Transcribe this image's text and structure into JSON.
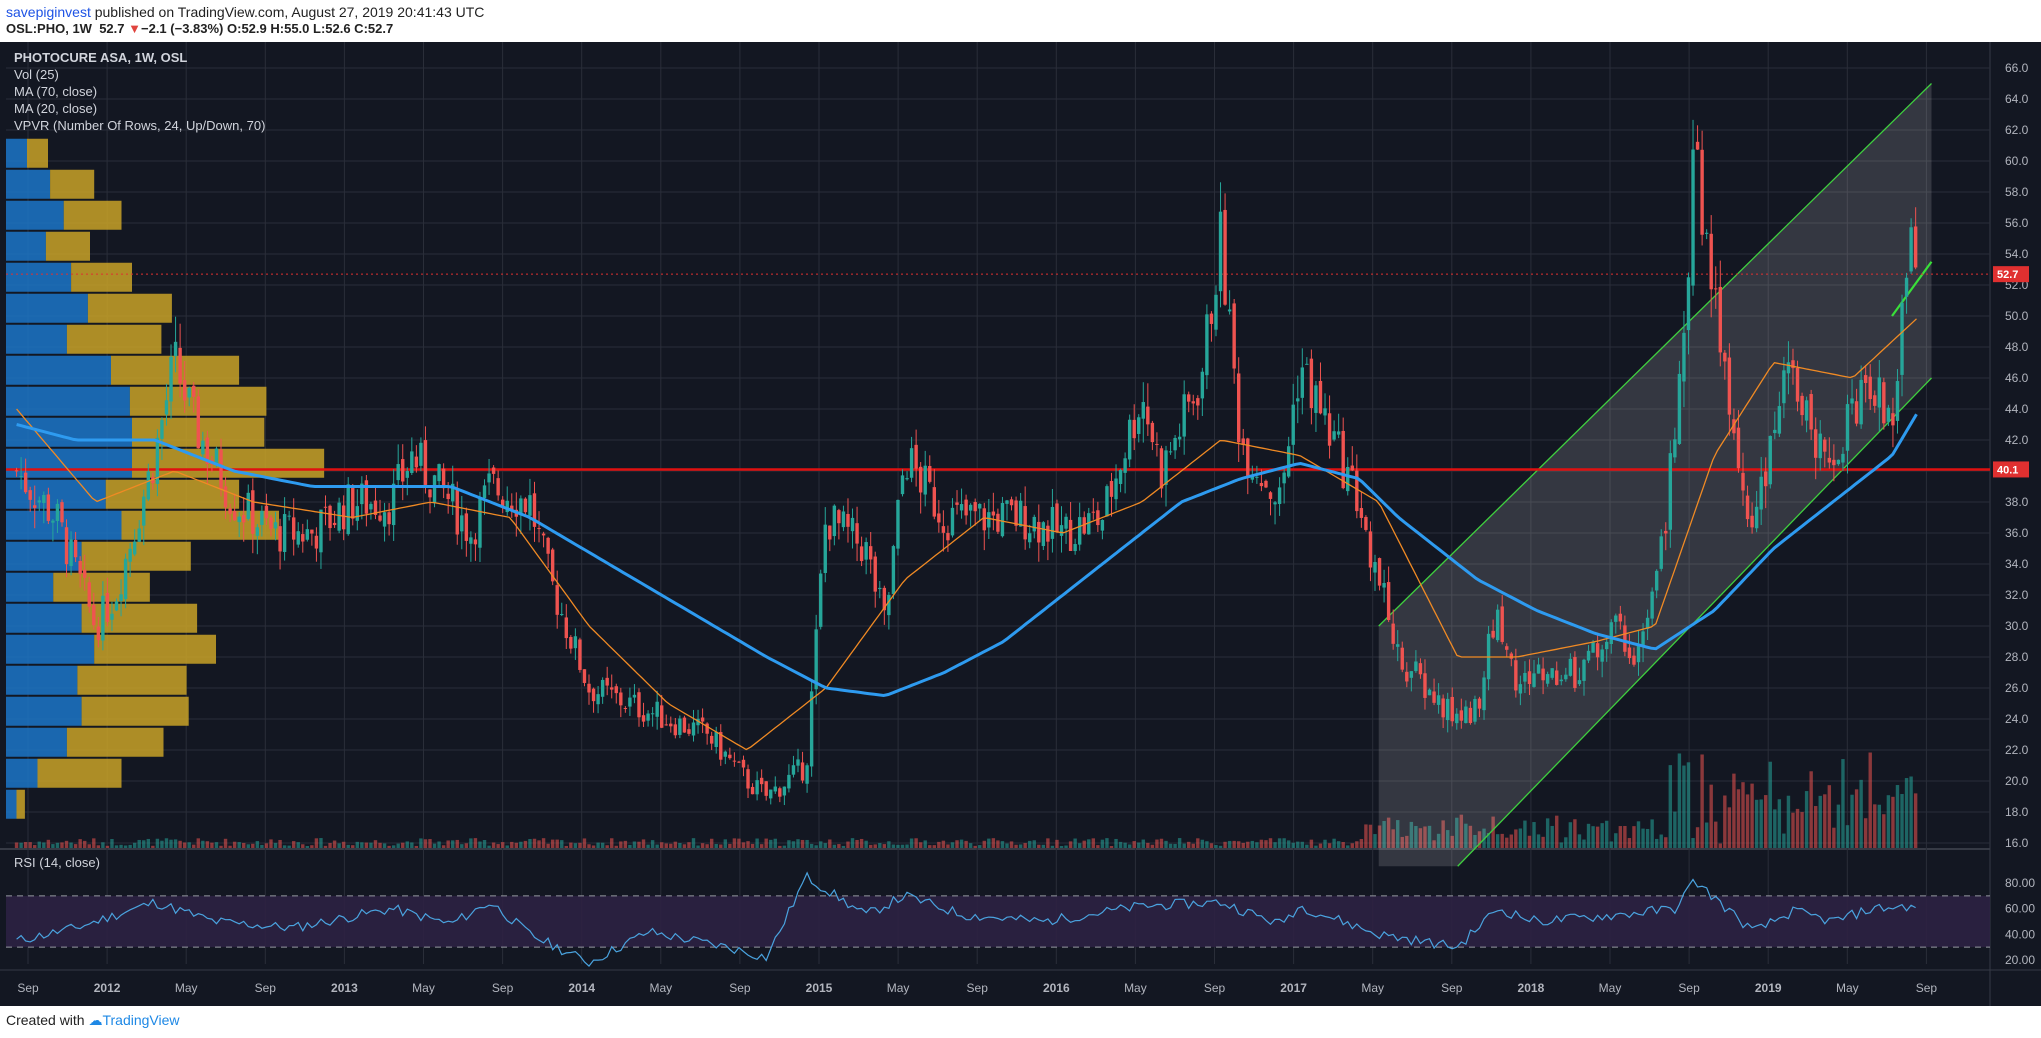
{
  "header": {
    "user": "savepiginvest",
    "published_text": "published on TradingView.com, August 27, 2019 20:41:43 UTC",
    "symbol": "OSL:PHO, 1W",
    "last": "52.7",
    "change": "−2.1 (−3.83%)",
    "ohlc": "O:52.9 H:55.0 L:52.6 C:52.7"
  },
  "legend": {
    "title": "PHOTOCURE ASA, 1W, OSL",
    "vol": "Vol (25)",
    "ma70": "MA (70, close)",
    "ma20": "MA (20, close)",
    "vpvr": "VPVR (Number Of Rows, 24, Up/Down, 70)",
    "rsi": "RSI (14, close)"
  },
  "footer": {
    "created": "Created with",
    "brand": "TradingView"
  },
  "colors": {
    "background": "#131722",
    "grid": "#2a2e39",
    "up": "#26a69a",
    "down": "#ef5350",
    "ma70": "#2e9bf0",
    "ma20": "#f08a24",
    "support": "#e01010",
    "channel": "#3fcf3f",
    "vpvr_up": "#1c76c8",
    "vpvr_down": "#c9a227",
    "rsi": "#4aa3df",
    "rsi_band": "#2c2142",
    "axis_text": "#b2b5be",
    "price_tag": "#e03030"
  },
  "chart_data": {
    "type": "candlestick",
    "price_axis": {
      "ticks": [
        "16.0",
        "18.0",
        "20.0",
        "22.0",
        "24.0",
        "26.0",
        "28.0",
        "30.0",
        "32.0",
        "34.0",
        "36.0",
        "38.0",
        "40.0",
        "42.0",
        "44.0",
        "46.0",
        "48.0",
        "50.0",
        "52.0",
        "54.0",
        "56.0",
        "58.0",
        "60.0",
        "62.0",
        "64.0",
        "66.0"
      ],
      "range": [
        15.0,
        67.0
      ]
    },
    "time_axis": {
      "labels": [
        "Sep",
        "2012",
        "May",
        "Sep",
        "2013",
        "May",
        "Sep",
        "2014",
        "May",
        "Sep",
        "2015",
        "May",
        "Sep",
        "2016",
        "May",
        "Sep",
        "2017",
        "May",
        "Sep",
        "2018",
        "May",
        "Sep",
        "2019",
        "May",
        "Sep"
      ]
    },
    "last_price_tag": "52.7",
    "support_level_tag": "40.1",
    "support_level": 40.1,
    "price_anchors": [
      [
        "2011-08",
        40
      ],
      [
        "2011-10",
        37
      ],
      [
        "2011-12",
        30
      ],
      [
        "2012-01",
        32
      ],
      [
        "2012-03",
        41
      ],
      [
        "2012-04",
        47
      ],
      [
        "2012-05",
        43
      ],
      [
        "2012-07",
        38
      ],
      [
        "2012-09",
        36
      ],
      [
        "2012-11",
        36
      ],
      [
        "2013-01",
        38
      ],
      [
        "2013-03",
        38
      ],
      [
        "2013-04",
        41
      ],
      [
        "2013-06",
        38
      ],
      [
        "2013-07",
        36
      ],
      [
        "2013-08",
        39
      ],
      [
        "2013-10",
        38
      ],
      [
        "2013-11",
        33
      ],
      [
        "2014-01",
        26
      ],
      [
        "2014-03",
        25
      ],
      [
        "2014-05",
        24
      ],
      [
        "2014-07",
        23
      ],
      [
        "2014-09",
        20
      ],
      [
        "2014-10",
        19
      ],
      [
        "2014-12",
        21
      ],
      [
        "2015-01",
        37
      ],
      [
        "2015-03",
        35
      ],
      [
        "2015-04",
        30
      ],
      [
        "2015-05",
        41
      ],
      [
        "2015-07",
        37
      ],
      [
        "2015-09",
        37
      ],
      [
        "2015-11",
        37
      ],
      [
        "2016-01",
        36
      ],
      [
        "2016-03",
        37
      ],
      [
        "2016-05",
        45
      ],
      [
        "2016-06",
        40
      ],
      [
        "2016-08",
        46
      ],
      [
        "2016-09",
        55
      ],
      [
        "2016-10",
        42
      ],
      [
        "2016-12",
        38
      ],
      [
        "2017-01",
        47
      ],
      [
        "2017-02",
        44
      ],
      [
        "2017-03",
        41
      ],
      [
        "2017-04",
        38
      ],
      [
        "2017-05",
        33
      ],
      [
        "2017-06",
        28
      ],
      [
        "2017-08",
        25
      ],
      [
        "2017-09",
        24
      ],
      [
        "2017-10",
        25
      ],
      [
        "2017-11",
        31
      ],
      [
        "2017-12",
        26
      ],
      [
        "2018-01",
        27
      ],
      [
        "2018-03",
        27
      ],
      [
        "2018-05",
        30
      ],
      [
        "2018-06",
        28
      ],
      [
        "2018-07",
        32
      ],
      [
        "2018-08",
        42
      ],
      [
        "2018-09",
        60
      ],
      [
        "2018-10",
        52
      ],
      [
        "2018-11",
        41
      ],
      [
        "2018-12",
        35
      ],
      [
        "2019-01",
        44
      ],
      [
        "2019-02",
        46
      ],
      [
        "2019-03",
        42
      ],
      [
        "2019-04",
        40
      ],
      [
        "2019-05",
        44
      ],
      [
        "2019-06",
        46
      ],
      [
        "2019-07",
        42
      ],
      [
        "2019-08",
        56
      ],
      [
        "2019-08-27",
        52.7
      ]
    ],
    "ma70_anchors": [
      [
        "2011-08",
        43
      ],
      [
        "2011-11",
        42
      ],
      [
        "2012-03",
        42
      ],
      [
        "2012-07",
        40
      ],
      [
        "2012-11",
        39
      ],
      [
        "2013-03",
        39
      ],
      [
        "2013-06",
        39
      ],
      [
        "2013-10",
        37
      ],
      [
        "2014-02",
        34
      ],
      [
        "2014-06",
        31
      ],
      [
        "2014-10",
        28
      ],
      [
        "2015-01",
        26
      ],
      [
        "2015-04",
        25.5
      ],
      [
        "2015-07",
        27
      ],
      [
        "2015-10",
        29
      ],
      [
        "2016-01",
        32
      ],
      [
        "2016-04",
        35
      ],
      [
        "2016-07",
        38
      ],
      [
        "2016-10",
        39.5
      ],
      [
        "2017-01",
        40.5
      ],
      [
        "2017-04",
        39.5
      ],
      [
        "2017-06",
        37
      ],
      [
        "2017-08",
        35
      ],
      [
        "2017-10",
        33
      ],
      [
        "2018-01",
        31
      ],
      [
        "2018-04",
        29.5
      ],
      [
        "2018-07",
        28.5
      ],
      [
        "2018-10",
        31
      ],
      [
        "2019-01",
        35
      ],
      [
        "2019-04",
        38
      ],
      [
        "2019-07",
        41
      ],
      [
        "2019-08-27",
        44
      ]
    ],
    "ma20_anchors": [
      [
        "2011-08",
        44
      ],
      [
        "2011-12",
        38
      ],
      [
        "2012-04",
        40
      ],
      [
        "2012-08",
        38
      ],
      [
        "2013-01",
        37
      ],
      [
        "2013-05",
        38
      ],
      [
        "2013-09",
        37
      ],
      [
        "2014-01",
        30
      ],
      [
        "2014-05",
        25
      ],
      [
        "2014-09",
        22
      ],
      [
        "2015-01",
        26
      ],
      [
        "2015-05",
        33
      ],
      [
        "2015-09",
        37
      ],
      [
        "2016-01",
        36
      ],
      [
        "2016-05",
        38
      ],
      [
        "2016-09",
        42
      ],
      [
        "2017-01",
        41
      ],
      [
        "2017-05",
        38
      ],
      [
        "2017-09",
        28
      ],
      [
        "2017-12",
        28
      ],
      [
        "2018-04",
        29
      ],
      [
        "2018-07",
        30
      ],
      [
        "2018-10",
        41
      ],
      [
        "2019-01",
        47
      ],
      [
        "2019-05",
        46
      ],
      [
        "2019-08-27",
        50
      ]
    ],
    "channel": {
      "upper": [
        [
          "2017-05",
          30
        ],
        [
          "2019-09",
          65
        ]
      ],
      "lower": [
        [
          "2017-09",
          14.5
        ],
        [
          "2019-09",
          46
        ]
      ]
    },
    "short_trendline": [
      [
        "2019-07",
        50
      ],
      [
        "2019-09",
        53.5
      ]
    ],
    "vpvr_rows": [
      {
        "price": 16.5,
        "up": 0,
        "down": 0
      },
      {
        "price": 18.5,
        "up": 10,
        "down": 8
      },
      {
        "price": 20.5,
        "up": 30,
        "down": 80
      },
      {
        "price": 22.5,
        "up": 58,
        "down": 92
      },
      {
        "price": 24.5,
        "up": 72,
        "down": 102
      },
      {
        "price": 26.5,
        "up": 68,
        "down": 104
      },
      {
        "price": 28.5,
        "up": 84,
        "down": 116
      },
      {
        "price": 30.5,
        "up": 72,
        "down": 110
      },
      {
        "price": 32.5,
        "up": 45,
        "down": 92
      },
      {
        "price": 34.5,
        "up": 72,
        "down": 104
      },
      {
        "price": 36.5,
        "up": 110,
        "down": 150
      },
      {
        "price": 38.5,
        "up": 95,
        "down": 127
      },
      {
        "price": 40.5,
        "up": 120,
        "down": 183
      },
      {
        "price": 42.5,
        "up": 120,
        "down": 126
      },
      {
        "price": 44.5,
        "up": 118,
        "down": 130
      },
      {
        "price": 46.5,
        "up": 100,
        "down": 122
      },
      {
        "price": 48.5,
        "up": 58,
        "down": 90
      },
      {
        "price": 50.5,
        "up": 78,
        "down": 80
      },
      {
        "price": 52.5,
        "up": 62,
        "down": 58
      },
      {
        "price": 54.5,
        "up": 38,
        "down": 42
      },
      {
        "price": 56.5,
        "up": 55,
        "down": 55
      },
      {
        "price": 58.5,
        "up": 42,
        "down": 42
      },
      {
        "price": 60.5,
        "up": 20,
        "down": 20
      },
      {
        "price": 62.5,
        "up": 0,
        "down": 0
      }
    ],
    "rsi": {
      "ticks": [
        "20.00",
        "40.00",
        "60.00",
        "80.00"
      ],
      "bands": [
        30,
        70
      ],
      "anchors": [
        [
          "2011-08",
          35
        ],
        [
          "2011-11",
          45
        ],
        [
          "2012-03",
          65
        ],
        [
          "2012-06",
          50
        ],
        [
          "2012-10",
          45
        ],
        [
          "2013-03",
          60
        ],
        [
          "2013-06",
          48
        ],
        [
          "2013-08",
          65
        ],
        [
          "2013-10",
          40
        ],
        [
          "2014-01",
          18
        ],
        [
          "2014-04",
          42
        ],
        [
          "2014-08",
          30
        ],
        [
          "2014-10",
          22
        ],
        [
          "2014-12",
          85
        ],
        [
          "2015-03",
          55
        ],
        [
          "2015-05",
          70
        ],
        [
          "2015-08",
          55
        ],
        [
          "2015-12",
          50
        ],
        [
          "2016-05",
          62
        ],
        [
          "2016-09",
          65
        ],
        [
          "2016-12",
          48
        ],
        [
          "2017-01",
          62
        ],
        [
          "2017-05",
          40
        ],
        [
          "2017-09",
          30
        ],
        [
          "2017-11",
          60
        ],
        [
          "2018-01",
          50
        ],
        [
          "2018-05",
          55
        ],
        [
          "2018-08",
          60
        ],
        [
          "2018-09",
          82
        ],
        [
          "2018-11",
          55
        ],
        [
          "2018-12",
          42
        ],
        [
          "2019-02",
          58
        ],
        [
          "2019-04",
          50
        ],
        [
          "2019-06",
          60
        ],
        [
          "2019-08",
          62
        ],
        [
          "2019-08-27",
          55
        ]
      ]
    }
  }
}
